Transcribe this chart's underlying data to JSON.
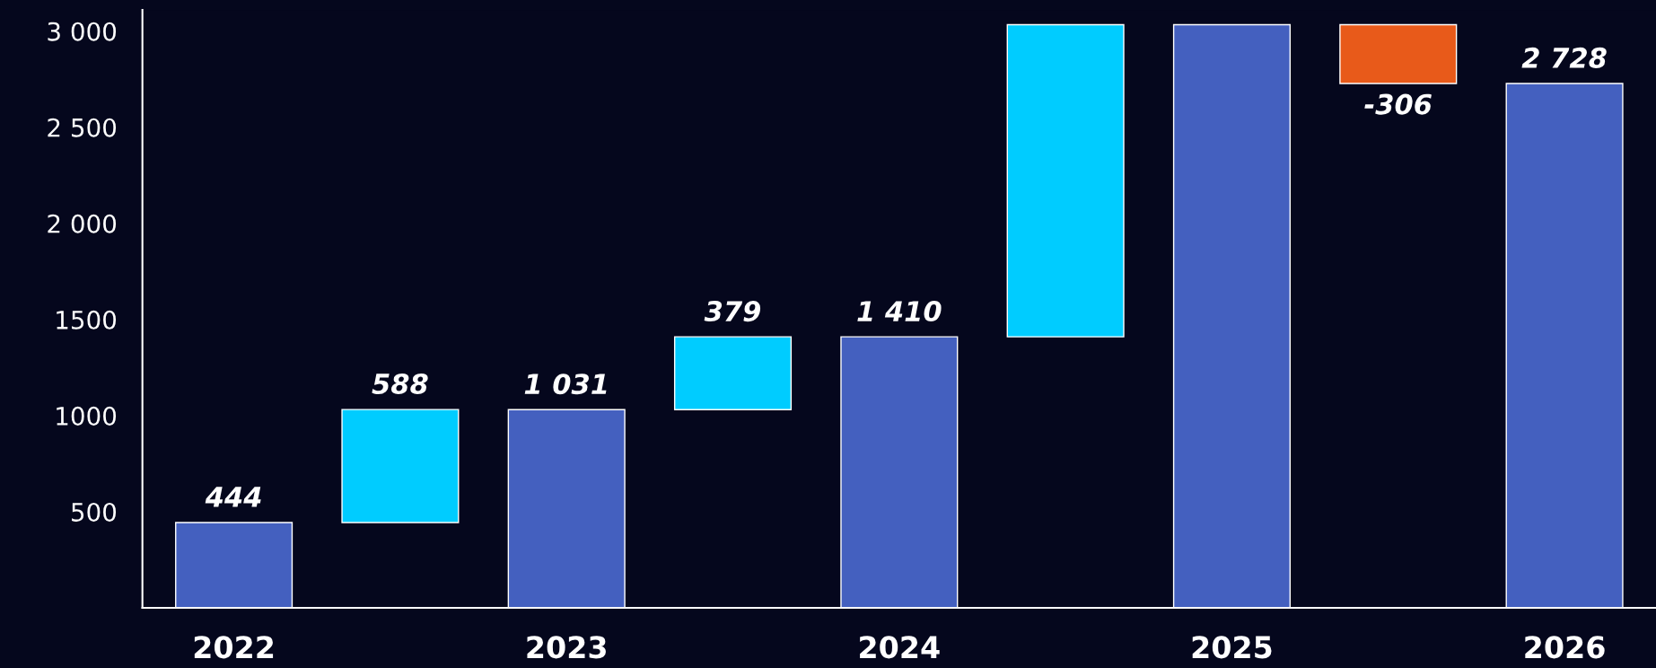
{
  "chart_data": {
    "type": "bar",
    "categories": [
      "2022",
      null,
      "2023",
      null,
      "2024",
      null,
      "2025",
      null,
      "2026"
    ],
    "values": [
      444,
      588,
      1031,
      379,
      1410,
      1624,
      3034,
      -306,
      2728
    ],
    "base": [
      0,
      444,
      0,
      1031,
      0,
      1410,
      0,
      3034,
      0
    ],
    "colors": [
      "#4460bf",
      "#00ccff",
      "#4460bf",
      "#00ccff",
      "#4460bf",
      "#00ccff",
      "#4460bf",
      "#e85a1a",
      "#4460bf"
    ],
    "value_labels": [
      "444",
      "588",
      "1 031",
      "379",
      "1 410",
      null,
      null,
      "-306",
      "2 728"
    ],
    "ylim": [
      0,
      3110
    ],
    "yticks": [
      {
        "value": 500,
        "label": "500"
      },
      {
        "value": 1000,
        "label": "1000"
      },
      {
        "value": 1500,
        "label": "1500"
      },
      {
        "value": 2000,
        "label": "2 000"
      },
      {
        "value": 2500,
        "label": "2 500"
      },
      {
        "value": 3000,
        "label": "3 000"
      }
    ],
    "grid": false,
    "legend": false
  }
}
